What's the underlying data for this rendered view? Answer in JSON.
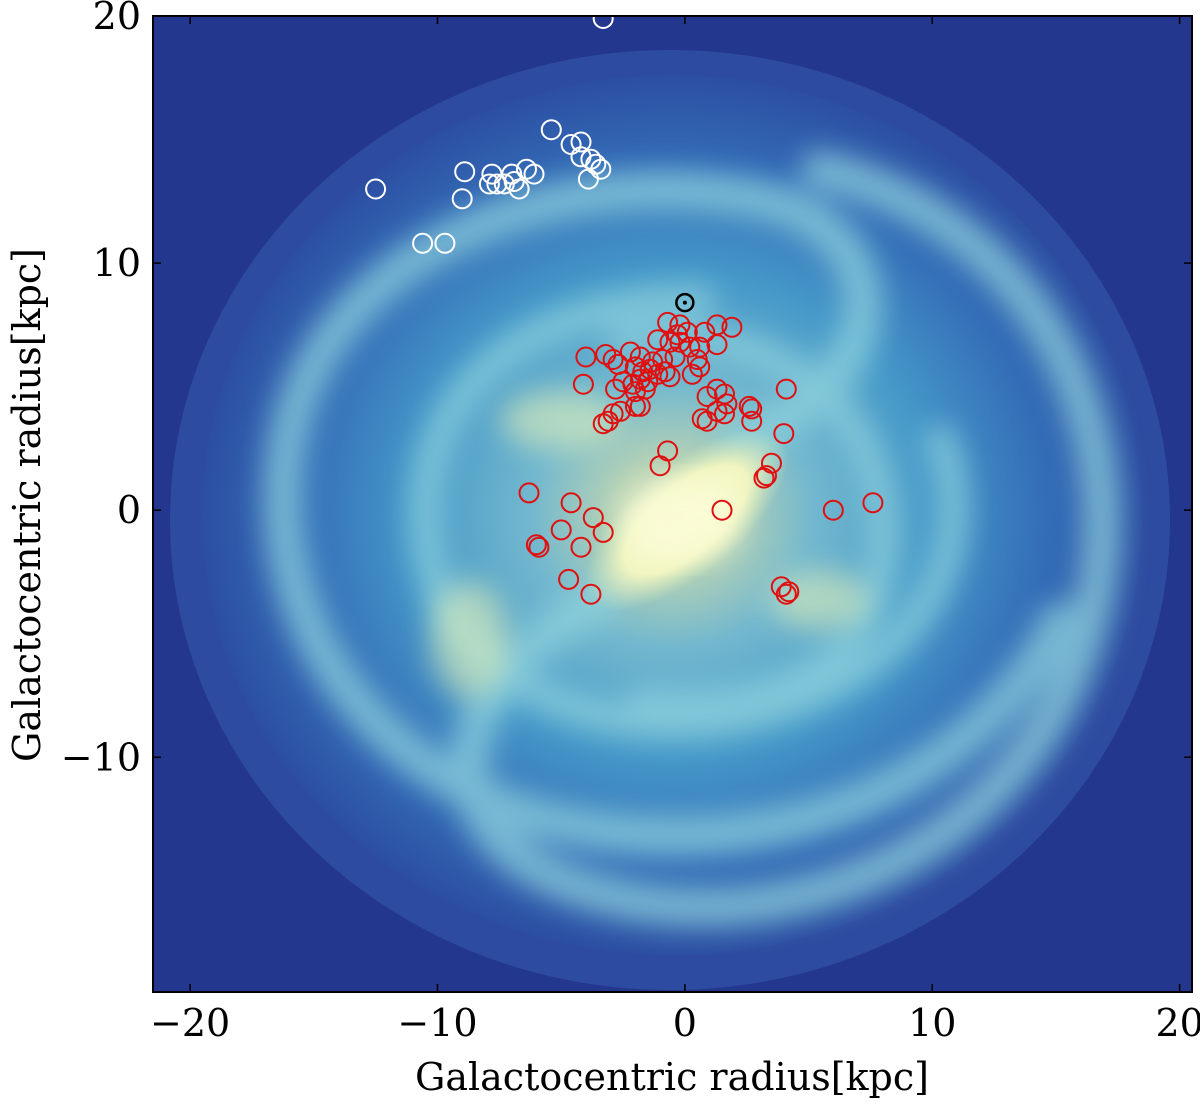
{
  "chart_data": {
    "type": "scatter",
    "title": "",
    "xlabel": "Galactocentric radius[kpc]",
    "ylabel": "Galactocentric radius[kpc]",
    "xlim": [
      -21.5,
      20.5
    ],
    "ylim": [
      -19.5,
      20
    ],
    "xticks": [
      {
        "value": -20,
        "label": "−20"
      },
      {
        "value": -10,
        "label": "−10"
      },
      {
        "value": 0,
        "label": "0"
      },
      {
        "value": 10,
        "label": "10"
      },
      {
        "value": 20,
        "label": "20"
      }
    ],
    "yticks": [
      {
        "value": 20,
        "label": "20"
      },
      {
        "value": 10,
        "label": "10"
      },
      {
        "value": 0,
        "label": "0"
      },
      {
        "value": -10,
        "label": "−10"
      }
    ],
    "background": "Milky Way face-on spiral galaxy image",
    "colors": {
      "outer_disk": "#24378f",
      "arm": "#5cb8d8",
      "bulge": "#f5f7c0",
      "red_markers": "#e01010",
      "white_markers": "#ffffff",
      "sun_marker": "#000000"
    },
    "sun": {
      "x": 0.0,
      "y": 8.4
    },
    "series": [
      {
        "marker": "open-circle",
        "color": "#ffffff",
        "points": [
          [
            -3.3,
            19.9
          ],
          [
            -5.4,
            15.4
          ],
          [
            -4.6,
            14.8
          ],
          [
            -4.2,
            14.9
          ],
          [
            -4.2,
            14.3
          ],
          [
            -3.8,
            14.2
          ],
          [
            -3.6,
            14.0
          ],
          [
            -3.4,
            13.8
          ],
          [
            -3.9,
            13.4
          ],
          [
            -6.4,
            13.8
          ],
          [
            -6.1,
            13.6
          ],
          [
            -7.0,
            13.6
          ],
          [
            -6.9,
            13.3
          ],
          [
            -7.8,
            13.6
          ],
          [
            -7.3,
            13.2
          ],
          [
            -7.6,
            13.2
          ],
          [
            -7.9,
            13.2
          ],
          [
            -6.7,
            13.0
          ],
          [
            -8.9,
            13.7
          ],
          [
            -9.0,
            12.6
          ],
          [
            -12.5,
            13.0
          ],
          [
            -10.6,
            10.8
          ],
          [
            -9.7,
            10.8
          ]
        ]
      },
      {
        "marker": "open-circle",
        "color": "#e01010",
        "points": [
          [
            -0.7,
            7.6
          ],
          [
            -0.2,
            7.5
          ],
          [
            -0.3,
            7.1
          ],
          [
            0.1,
            7.2
          ],
          [
            0.8,
            7.2
          ],
          [
            1.3,
            7.5
          ],
          [
            1.9,
            7.4
          ],
          [
            -0.6,
            6.8
          ],
          [
            -0.2,
            6.8
          ],
          [
            0.2,
            6.6
          ],
          [
            0.6,
            6.6
          ],
          [
            1.3,
            6.7
          ],
          [
            -1.1,
            6.9
          ],
          [
            -4.0,
            6.2
          ],
          [
            -3.2,
            6.3
          ],
          [
            -2.9,
            6.1
          ],
          [
            -2.7,
            5.9
          ],
          [
            -2.2,
            6.4
          ],
          [
            -1.8,
            6.2
          ],
          [
            -1.3,
            6.0
          ],
          [
            -0.9,
            6.1
          ],
          [
            -0.4,
            6.2
          ],
          [
            0.5,
            6.1
          ],
          [
            0.6,
            5.8
          ],
          [
            -2.0,
            5.8
          ],
          [
            -1.7,
            5.6
          ],
          [
            -1.4,
            5.7
          ],
          [
            -1.1,
            5.5
          ],
          [
            -0.8,
            5.6
          ],
          [
            -0.6,
            5.4
          ],
          [
            0.3,
            5.5
          ],
          [
            -1.8,
            5.3
          ],
          [
            -1.5,
            5.2
          ],
          [
            -2.1,
            5.1
          ],
          [
            -2.5,
            5.2
          ],
          [
            -2.8,
            4.9
          ],
          [
            -2.0,
            4.8
          ],
          [
            -1.6,
            4.9
          ],
          [
            -4.1,
            5.1
          ],
          [
            -2.0,
            4.2
          ],
          [
            -1.8,
            4.2
          ],
          [
            -2.6,
            4.0
          ],
          [
            -2.9,
            3.9
          ],
          [
            -3.1,
            3.6
          ],
          [
            -3.3,
            3.5
          ],
          [
            0.9,
            4.6
          ],
          [
            1.3,
            4.9
          ],
          [
            1.6,
            4.7
          ],
          [
            1.7,
            4.3
          ],
          [
            1.3,
            4.0
          ],
          [
            1.6,
            3.9
          ],
          [
            0.7,
            3.7
          ],
          [
            0.9,
            3.6
          ],
          [
            2.6,
            4.2
          ],
          [
            2.7,
            4.1
          ],
          [
            2.7,
            3.6
          ],
          [
            4.1,
            4.9
          ],
          [
            4.0,
            3.1
          ],
          [
            3.5,
            1.9
          ],
          [
            3.3,
            1.4
          ],
          [
            3.2,
            1.3
          ],
          [
            -0.7,
            2.4
          ],
          [
            -1.0,
            1.8
          ],
          [
            -6.3,
            0.7
          ],
          [
            -4.6,
            0.3
          ],
          [
            1.5,
            0.0
          ],
          [
            6.0,
            0.0
          ],
          [
            7.6,
            0.3
          ],
          [
            -3.7,
            -0.3
          ],
          [
            -3.3,
            -0.9
          ],
          [
            -5.0,
            -0.8
          ],
          [
            -6.0,
            -1.4
          ],
          [
            -5.9,
            -1.5
          ],
          [
            -4.2,
            -1.5
          ],
          [
            -4.7,
            -2.8
          ],
          [
            -3.8,
            -3.4
          ],
          [
            3.9,
            -3.1
          ],
          [
            4.2,
            -3.3
          ],
          [
            4.1,
            -3.4
          ]
        ]
      }
    ]
  }
}
